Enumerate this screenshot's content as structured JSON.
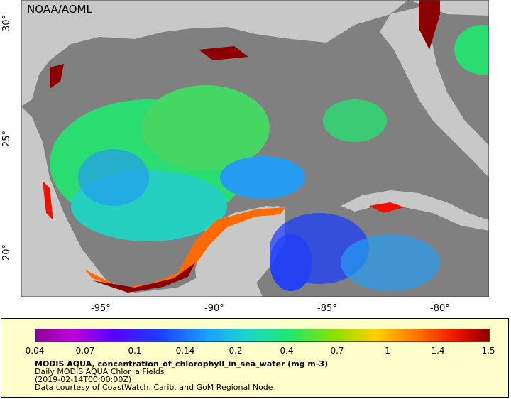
{
  "credit": "NOAA/AOML",
  "lat_ticks": [
    "30°",
    "25°",
    "20°"
  ],
  "lon_ticks": [
    "-95°",
    "-90°",
    "-85°",
    "-80°"
  ],
  "colorbar": {
    "ticks": [
      "0.04",
      "0.07",
      "0.1",
      "0.14",
      "0.2",
      "0.4",
      "0.7",
      "1",
      "1.4",
      "1.5"
    ]
  },
  "legend": {
    "title": "MODIS AQUA, concentration_of_chlorophyll_in_sea_water (mg m-3)",
    "subtitle": "Daily MODIS AQUA Chlor_a Fields",
    "time": "(2019-02-14T00:00:00Z)",
    "credit": "Data courtesy of CoastWatch, Carib. and GoM Regional Node"
  },
  "colors": {
    "land": "#c8c8c8",
    "no_data": "#808080",
    "legend_bg": "#ffffcc"
  }
}
